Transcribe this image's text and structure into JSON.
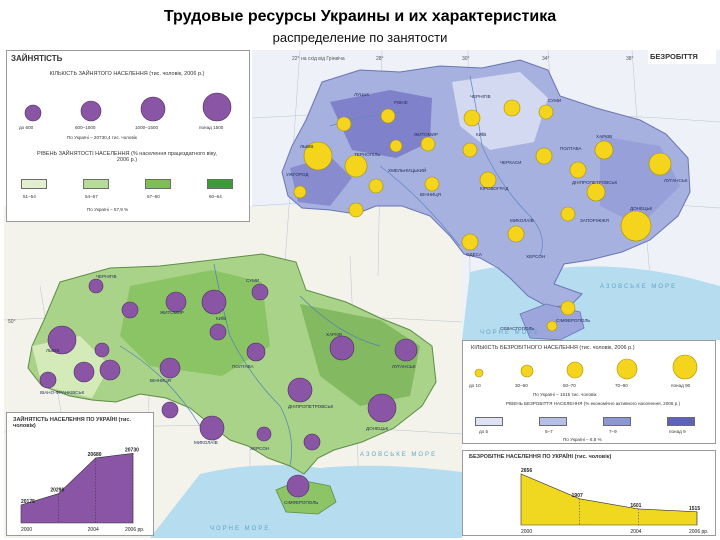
{
  "title": "Трудовые ресурсы Украины и их характеристика",
  "subtitle": "распределение по занятости",
  "employment_legend": {
    "section": "ЗАЙНЯТІСТЬ",
    "count_title": "КІЛЬКІСТЬ ЗАЙНЯТОГО НАСЕЛЕННЯ (тис. чоловік, 2006 р.)",
    "circle_labels": [
      "до 600",
      "600–1000",
      "1000–1500",
      "понад 1500"
    ],
    "total": "По Україні – 20730,4 тис. чоловік",
    "level_title": "РІВЕНЬ ЗАЙНЯТОСТІ НАСЕЛЕННЯ (% населення працездатного віку, 2006 р.)",
    "levels": [
      "51–54",
      "54–57",
      "57–60",
      "60–64"
    ],
    "level_colors": [
      "#e2f0cf",
      "#b7dc95",
      "#7fbd55",
      "#3f9a3a"
    ],
    "level_total": "По Україні – 57,9 %"
  },
  "unemployment_legend": {
    "section": "БЕЗРОБІТТЯ",
    "count_title": "КІЛЬКІСТЬ БЕЗРОБІТНОГО НАСЕЛЕННЯ (тис. чоловік, 2006 р.)",
    "circle_labels": [
      "до 10",
      "30–50",
      "50–70",
      "70–90",
      "понад 90"
    ],
    "total": "По Україні – 1515 тис. чоловік",
    "level_title": "РІВЕНЬ БЕЗРОБІТТЯ НАСЕЛЕННЯ (% економічно активного населення, 2006 р.)",
    "levels": [
      "до 5",
      "5–7",
      "7–9",
      "понад 9"
    ],
    "level_colors": [
      "#dde3f4",
      "#b6c0e6",
      "#8c98d6",
      "#5f63b8"
    ],
    "level_total": "По Україні – 6,8 %"
  },
  "map_labels": {
    "grid": [
      "22° на схід від Грінвіча",
      "28°",
      "30°",
      "34°",
      "38°",
      "50°"
    ],
    "seas": [
      "ЧОРНЕ МОРЕ",
      "АЗОВСЬКЕ МОРЕ"
    ],
    "cities": [
      "ЧЕРНІГІВ",
      "СУМИ",
      "ЖИТОМИР",
      "КИЇВ",
      "ЛУЦЬК",
      "РІВНЕ",
      "ЛЬВІВ",
      "ТЕРНОПІЛЬ",
      "ХМЕЛЬНИЦЬКИЙ",
      "ВІННИЦЯ",
      "ЧЕРКАСИ",
      "ПОЛТАВА",
      "ХАРКІВ",
      "ЛУГАНСЬК",
      "ДОНЕЦЬК",
      "ДНІПРОПЕТРОВСЬК",
      "ЗАПОРІЖЖЯ",
      "КІРОВОГРАД",
      "МИКОЛАЇВ",
      "ОДЕСА",
      "ХЕРСОН",
      "СІМФЕРОПОЛЬ",
      "СЕВАСТОПОЛЬ",
      "УЖГОРОД",
      "ІВАНО-ФРАНКІВСЬК",
      "ЧЕРНІВЦІ"
    ]
  },
  "chart_data": [
    {
      "type": "area",
      "title": "ЗАЙНЯТІСТЬ НАСЕЛЕННЯ ПО УКРАЇНІ (тис. чоловік)",
      "x": [
        "2000",
        "2004",
        "2005",
        "2006 рр."
      ],
      "values": [
        20175,
        20296,
        20680,
        20730
      ],
      "xlabels": [
        "2000",
        "2004",
        "2006 рр."
      ],
      "color": "#8b55a6"
    },
    {
      "type": "area",
      "title": "БЕЗРОБІТНЕ НАСЕЛЕННЯ ПО УКРАЇНІ (тис. чоловік)",
      "x": [
        "2000",
        "2004",
        "2005",
        "2006 рр."
      ],
      "values": [
        2656,
        1907,
        1601,
        1515
      ],
      "xlabels": [
        "2000",
        "2004",
        "2006 рр."
      ],
      "color": "#f1d820"
    }
  ]
}
